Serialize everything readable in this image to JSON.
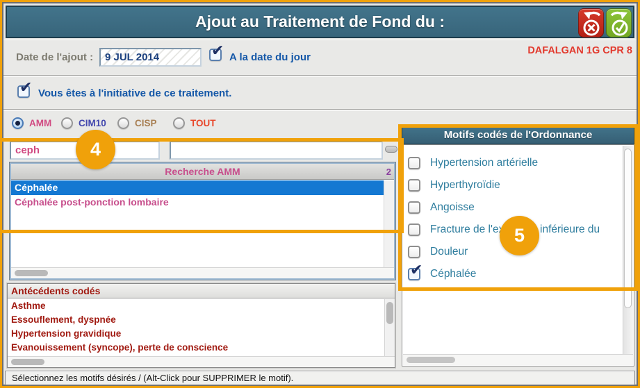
{
  "title_bar": {
    "title": "Ajout au Traitement de Fond du :",
    "buttons": [
      {
        "name": "cancel-button",
        "icon": "undo-cross-icon",
        "color": "#C33024"
      },
      {
        "name": "validate-button",
        "icon": "redo-check-icon",
        "color": "#7FB42B"
      }
    ]
  },
  "medication": "DAFALGAN 1G CPR 8",
  "date_row": {
    "label": "Date de l'ajout :",
    "value": "9 JUL 2014",
    "checkbox_label": "A la date du jour",
    "checkbox_checked": true
  },
  "initiative_row": {
    "label": "Vous êtes à l'initiative de ce traitement.",
    "checkbox_checked": true
  },
  "search_modes": [
    {
      "label": "AMM",
      "selected": true,
      "color": "#D14A82"
    },
    {
      "label": "CIM10",
      "selected": false,
      "color": "#4348AE"
    },
    {
      "label": "CISP",
      "selected": false,
      "color": "#A98054"
    },
    {
      "label": "TOUT",
      "selected": false,
      "color": "#E8472B"
    }
  ],
  "search": {
    "query": "ceph",
    "query2": "",
    "collapse_icon": "minus-icon"
  },
  "amm_list": {
    "header": "Recherche AMM",
    "count": "2",
    "items": [
      {
        "label": "Céphalée",
        "selected": true
      },
      {
        "label": "Céphalée post-ponction lombaire",
        "selected": false
      }
    ]
  },
  "antecedents": {
    "header": "Antécédents codés",
    "items": [
      "Asthme",
      "Essouflement, dyspnée",
      "Hypertension gravidique",
      "Evanouissement (syncope), perte de conscience"
    ]
  },
  "motifs": {
    "header": "Motifs codés de l'Ordonnance",
    "items": [
      {
        "label": "Hypertension artérielle",
        "checked": false
      },
      {
        "label": "Hyperthyroïdie",
        "checked": false
      },
      {
        "label": "Angoisse",
        "checked": false
      },
      {
        "label": "Fracture de l'extrémité inférieure du",
        "checked": false
      },
      {
        "label": "Douleur",
        "checked": false
      },
      {
        "label": "Céphalée",
        "checked": true
      }
    ]
  },
  "status_bar": {
    "text": "Sélectionnez les motifs désirés / (Alt-Click pour SUPPRIMER le motif)."
  },
  "annotations": {
    "callout_search": "4",
    "callout_motifs": "5",
    "accent_color": "#F0A10A"
  }
}
